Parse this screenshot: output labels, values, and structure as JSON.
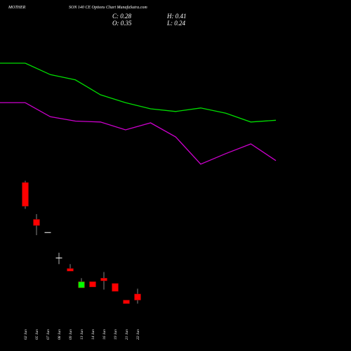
{
  "chart_data": {
    "type": "candlestick",
    "title_parts": [
      "MOTHER",
      "SON 140 CE Options Chart MunafaSutra.com"
    ],
    "ohlc_labels": [
      "C: 0.28",
      "O: 0.35",
      "H: 0.41",
      "L: 0.24"
    ],
    "categories": [
      "02 Jun",
      "05 Jun",
      "07 Jun",
      "08 Jun",
      "09 Jun",
      "13 Jun",
      "14 Jun",
      "16 Jun",
      "19 Jun",
      "21 Jun",
      "22 Jun"
    ],
    "open": [
      1.62,
      1.2,
      1.05,
      0.76,
      0.64,
      0.42,
      0.49,
      0.53,
      0.47,
      0.28,
      0.35
    ],
    "high": [
      1.64,
      1.26,
      1.05,
      0.82,
      0.69,
      0.53,
      0.49,
      0.6,
      0.47,
      0.28,
      0.41
    ],
    "low": [
      1.32,
      1.02,
      1.05,
      0.69,
      0.61,
      0.42,
      0.43,
      0.4,
      0.38,
      0.24,
      0.24
    ],
    "close": [
      1.35,
      1.13,
      1.05,
      0.76,
      0.61,
      0.49,
      0.43,
      0.5,
      0.38,
      0.24,
      0.28
    ],
    "up_color": "#00ff00",
    "down_color": "#ff0000",
    "flat_color": "#ffffff",
    "lines": [
      {
        "color": "#00dd00",
        "values": [
          2.98,
          2.85,
          2.79,
          2.62,
          2.53,
          2.46,
          2.43,
          2.47,
          2.41,
          2.31,
          2.33
        ]
      },
      {
        "color": "#cc00cc",
        "values": [
          2.53,
          2.37,
          2.32,
          2.31,
          2.22,
          2.3,
          2.14,
          1.83,
          1.95,
          2.06,
          1.87
        ]
      }
    ],
    "ylim": [
      -0.3,
      3.7
    ]
  }
}
